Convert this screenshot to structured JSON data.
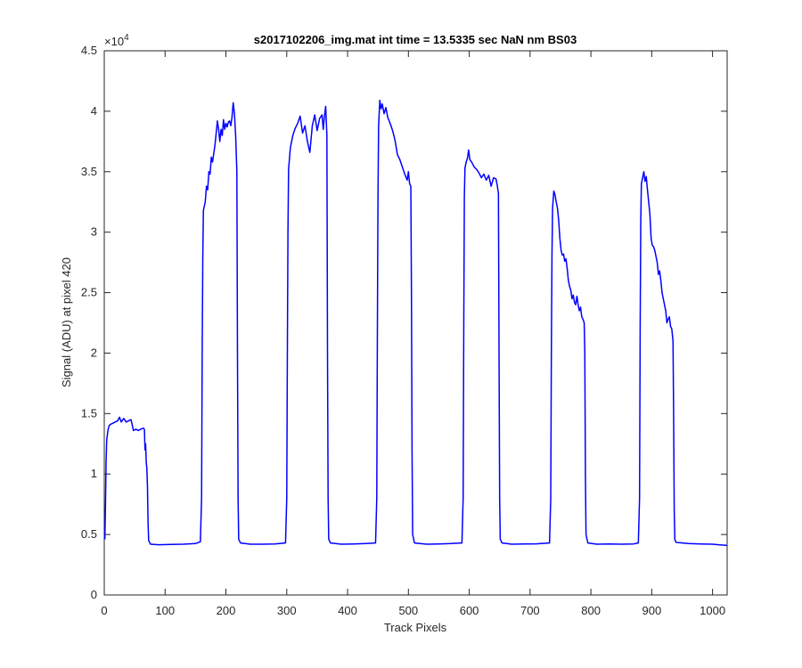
{
  "chart_data": {
    "type": "line",
    "title": "s2017102206_img.mat int time = 13.5335 sec  NaN nm BS03",
    "xlabel": "Track Pixels",
    "ylabel": "Signal (ADU) at pixel 420",
    "xlim": [
      0,
      1024
    ],
    "ylim": [
      0,
      45000
    ],
    "x_ticks": [
      "0",
      "100",
      "200",
      "300",
      "400",
      "500",
      "600",
      "700",
      "800",
      "900",
      "1000"
    ],
    "x_tick_values": [
      0,
      100,
      200,
      300,
      400,
      500,
      600,
      700,
      800,
      900,
      1000
    ],
    "y_ticks": [
      "0",
      "0.5",
      "1",
      "1.5",
      "2",
      "2.5",
      "3",
      "3.5",
      "4",
      "4.5"
    ],
    "y_tick_values": [
      0,
      5000,
      10000,
      15000,
      20000,
      25000,
      30000,
      35000,
      40000,
      45000
    ],
    "y_exponent_label": "×10",
    "y_exponent_power": "4",
    "grid": false,
    "line_color": "#0000ff",
    "series": [
      {
        "points": [
          [
            1,
            4600
          ],
          [
            2,
            7500
          ],
          [
            3,
            11000
          ],
          [
            4,
            12800
          ],
          [
            6,
            13600
          ],
          [
            8,
            14000
          ],
          [
            10,
            14100
          ],
          [
            14,
            14200
          ],
          [
            18,
            14300
          ],
          [
            22,
            14400
          ],
          [
            25,
            14700
          ],
          [
            28,
            14300
          ],
          [
            32,
            14600
          ],
          [
            36,
            14300
          ],
          [
            40,
            14400
          ],
          [
            44,
            14500
          ],
          [
            48,
            13600
          ],
          [
            52,
            13700
          ],
          [
            56,
            13600
          ],
          [
            60,
            13700
          ],
          [
            64,
            13800
          ],
          [
            66,
            13700
          ],
          [
            67,
            12000
          ],
          [
            68,
            12500
          ],
          [
            69,
            11000
          ],
          [
            70,
            10500
          ],
          [
            71,
            9000
          ],
          [
            72,
            6000
          ],
          [
            73,
            4500
          ],
          [
            76,
            4200
          ],
          [
            90,
            4150
          ],
          [
            110,
            4180
          ],
          [
            130,
            4200
          ],
          [
            150,
            4250
          ],
          [
            158,
            4400
          ],
          [
            160,
            8000
          ],
          [
            161,
            20000
          ],
          [
            162,
            28000
          ],
          [
            163,
            31800
          ],
          [
            166,
            32500
          ],
          [
            168,
            33800
          ],
          [
            170,
            33500
          ],
          [
            172,
            35000
          ],
          [
            174,
            34800
          ],
          [
            176,
            36200
          ],
          [
            178,
            35800
          ],
          [
            180,
            36500
          ],
          [
            182,
            37200
          ],
          [
            184,
            38200
          ],
          [
            186,
            39200
          ],
          [
            188,
            38500
          ],
          [
            190,
            37500
          ],
          [
            192,
            38500
          ],
          [
            194,
            38000
          ],
          [
            196,
            39300
          ],
          [
            198,
            38500
          ],
          [
            200,
            39000
          ],
          [
            202,
            38700
          ],
          [
            204,
            39100
          ],
          [
            206,
            39200
          ],
          [
            208,
            38800
          ],
          [
            210,
            39500
          ],
          [
            212,
            40700
          ],
          [
            214,
            39800
          ],
          [
            216,
            38000
          ],
          [
            218,
            35000
          ],
          [
            219,
            20000
          ],
          [
            220,
            8000
          ],
          [
            221,
            4600
          ],
          [
            224,
            4300
          ],
          [
            240,
            4200
          ],
          [
            260,
            4200
          ],
          [
            280,
            4220
          ],
          [
            298,
            4300
          ],
          [
            300,
            8000
          ],
          [
            301,
            20000
          ],
          [
            302,
            30000
          ],
          [
            303,
            35200
          ],
          [
            306,
            37000
          ],
          [
            310,
            38000
          ],
          [
            314,
            38600
          ],
          [
            318,
            39000
          ],
          [
            322,
            39600
          ],
          [
            326,
            38200
          ],
          [
            330,
            38800
          ],
          [
            334,
            37500
          ],
          [
            338,
            36600
          ],
          [
            342,
            38800
          ],
          [
            346,
            39700
          ],
          [
            350,
            38400
          ],
          [
            354,
            39400
          ],
          [
            358,
            39700
          ],
          [
            360,
            38500
          ],
          [
            362,
            39600
          ],
          [
            364,
            40400
          ],
          [
            366,
            38000
          ],
          [
            367,
            20000
          ],
          [
            368,
            8000
          ],
          [
            369,
            4600
          ],
          [
            372,
            4300
          ],
          [
            390,
            4200
          ],
          [
            410,
            4220
          ],
          [
            430,
            4250
          ],
          [
            446,
            4300
          ],
          [
            448,
            8000
          ],
          [
            449,
            22000
          ],
          [
            450,
            33000
          ],
          [
            451,
            38800
          ],
          [
            453,
            40900
          ],
          [
            455,
            40200
          ],
          [
            457,
            40600
          ],
          [
            460,
            39800
          ],
          [
            463,
            40300
          ],
          [
            466,
            39500
          ],
          [
            470,
            39000
          ],
          [
            474,
            38400
          ],
          [
            478,
            37600
          ],
          [
            482,
            36400
          ],
          [
            486,
            36000
          ],
          [
            490,
            35400
          ],
          [
            494,
            34800
          ],
          [
            498,
            34300
          ],
          [
            500,
            35000
          ],
          [
            502,
            34000
          ],
          [
            504,
            33800
          ],
          [
            505,
            25000
          ],
          [
            506,
            12000
          ],
          [
            507,
            5000
          ],
          [
            510,
            4300
          ],
          [
            530,
            4200
          ],
          [
            550,
            4220
          ],
          [
            570,
            4250
          ],
          [
            588,
            4300
          ],
          [
            590,
            8000
          ],
          [
            591,
            22000
          ],
          [
            592,
            33000
          ],
          [
            593,
            35300
          ],
          [
            595,
            35800
          ],
          [
            597,
            36100
          ],
          [
            599,
            36800
          ],
          [
            601,
            36000
          ],
          [
            604,
            35800
          ],
          [
            608,
            35400
          ],
          [
            612,
            35200
          ],
          [
            616,
            34900
          ],
          [
            620,
            34500
          ],
          [
            624,
            34800
          ],
          [
            628,
            34300
          ],
          [
            632,
            34700
          ],
          [
            636,
            33800
          ],
          [
            640,
            34500
          ],
          [
            644,
            34400
          ],
          [
            646,
            33900
          ],
          [
            648,
            33200
          ],
          [
            649,
            20000
          ],
          [
            650,
            8000
          ],
          [
            651,
            4600
          ],
          [
            654,
            4300
          ],
          [
            670,
            4200
          ],
          [
            690,
            4220
          ],
          [
            710,
            4230
          ],
          [
            732,
            4300
          ],
          [
            734,
            8000
          ],
          [
            735,
            20000
          ],
          [
            736,
            28000
          ],
          [
            737,
            32000
          ],
          [
            739,
            33400
          ],
          [
            741,
            33100
          ],
          [
            743,
            32500
          ],
          [
            745,
            32000
          ],
          [
            747,
            31000
          ],
          [
            749,
            29500
          ],
          [
            751,
            28500
          ],
          [
            753,
            28100
          ],
          [
            755,
            28200
          ],
          [
            757,
            27600
          ],
          [
            759,
            27800
          ],
          [
            761,
            27000
          ],
          [
            763,
            26000
          ],
          [
            765,
            25500
          ],
          [
            767,
            25200
          ],
          [
            769,
            24500
          ],
          [
            771,
            24800
          ],
          [
            773,
            24200
          ],
          [
            775,
            24000
          ],
          [
            777,
            24700
          ],
          [
            779,
            24000
          ],
          [
            781,
            23500
          ],
          [
            783,
            23800
          ],
          [
            785,
            23000
          ],
          [
            787,
            22800
          ],
          [
            789,
            22500
          ],
          [
            790,
            20000
          ],
          [
            791,
            10000
          ],
          [
            792,
            5000
          ],
          [
            795,
            4300
          ],
          [
            810,
            4200
          ],
          [
            830,
            4220
          ],
          [
            850,
            4200
          ],
          [
            870,
            4220
          ],
          [
            878,
            4300
          ],
          [
            880,
            8000
          ],
          [
            881,
            22000
          ],
          [
            882,
            31000
          ],
          [
            883,
            34000
          ],
          [
            885,
            34500
          ],
          [
            887,
            35000
          ],
          [
            889,
            34200
          ],
          [
            891,
            34600
          ],
          [
            893,
            33500
          ],
          [
            895,
            32500
          ],
          [
            897,
            31500
          ],
          [
            899,
            29500
          ],
          [
            901,
            28900
          ],
          [
            903,
            28800
          ],
          [
            905,
            28500
          ],
          [
            907,
            28000
          ],
          [
            909,
            27500
          ],
          [
            911,
            26500
          ],
          [
            913,
            26800
          ],
          [
            915,
            26000
          ],
          [
            917,
            25000
          ],
          [
            919,
            24500
          ],
          [
            921,
            24000
          ],
          [
            923,
            23500
          ],
          [
            925,
            22500
          ],
          [
            927,
            22800
          ],
          [
            929,
            23000
          ],
          [
            931,
            22200
          ],
          [
            933,
            22000
          ],
          [
            935,
            21000
          ],
          [
            936,
            15000
          ],
          [
            937,
            7000
          ],
          [
            938,
            4600
          ],
          [
            940,
            4350
          ],
          [
            960,
            4250
          ],
          [
            980,
            4220
          ],
          [
            1000,
            4200
          ],
          [
            1010,
            4150
          ],
          [
            1024,
            4100
          ]
        ]
      }
    ]
  }
}
